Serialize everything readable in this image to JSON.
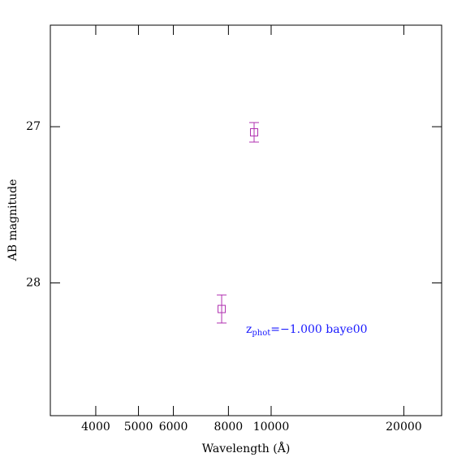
{
  "chart_data": {
    "type": "scatter",
    "x_label": "Wavelength (Å)",
    "y_label": "AB magnitude",
    "x_log": true,
    "y_inverted": true,
    "xlim": [
      3155,
      24370
    ],
    "ylim": [
      26.35,
      28.85
    ],
    "xticks": [
      4000,
      5000,
      6000,
      8000,
      10000,
      20000
    ],
    "yticks": [
      27,
      28
    ],
    "series": [
      {
        "color": "#b030b0",
        "marker": "square",
        "x": [
          9148,
          7722
        ],
        "values": [
          27.036,
          28.167
        ],
        "errors": [
          0.0625,
          0.09
        ]
      }
    ],
    "annotation": {
      "main": "z",
      "sub": "phot",
      "rest": "=−1.000 baye00",
      "color": "#1a1aff"
    }
  }
}
